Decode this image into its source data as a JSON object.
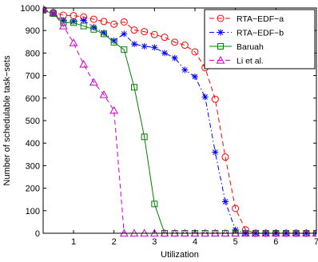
{
  "chart_data": {
    "type": "line",
    "xlabel": "Utilization",
    "ylabel": "Number of schedulable task−sets",
    "xlim": [
      0.25,
      7
    ],
    "ylim": [
      0,
      1000
    ],
    "xticks": [
      1,
      2,
      3,
      4,
      5,
      6,
      7
    ],
    "yticks": [
      0,
      100,
      200,
      300,
      400,
      500,
      600,
      700,
      800,
      900,
      1000
    ],
    "grid": false,
    "legend_position": "top-right",
    "x": [
      0.25,
      0.5,
      0.75,
      1.0,
      1.25,
      1.5,
      1.75,
      2.0,
      2.25,
      2.5,
      2.75,
      3.0,
      3.25,
      3.5,
      3.75,
      4.0,
      4.25,
      4.5,
      4.75,
      5.0,
      5.25,
      5.5,
      5.75,
      6.0,
      6.25,
      6.5,
      6.75,
      7.0
    ],
    "series": [
      {
        "name": "RTA−EDF−a",
        "color": "#ff0000",
        "dash": "6,4",
        "marker": "circle",
        "values": [
          993,
          980,
          968,
          966,
          960,
          950,
          940,
          928,
          938,
          902,
          895,
          882,
          870,
          848,
          835,
          805,
          735,
          595,
          338,
          110,
          15,
          0,
          0,
          0,
          0,
          0,
          0,
          0
        ]
      },
      {
        "name": "RTA−EDF−b",
        "color": "#0000ff",
        "dash": "6,3,1.5,3",
        "marker": "star",
        "values": [
          988,
          975,
          945,
          940,
          945,
          915,
          890,
          855,
          885,
          840,
          830,
          825,
          800,
          778,
          725,
          695,
          605,
          360,
          140,
          15,
          0,
          0,
          0,
          0,
          0,
          0,
          0,
          0
        ]
      },
      {
        "name": "Baruah",
        "color": "#008000",
        "dash": "",
        "marker": "square",
        "values": [
          990,
          975,
          935,
          935,
          920,
          905,
          885,
          848,
          815,
          648,
          428,
          130,
          0,
          0,
          0,
          0,
          0,
          0,
          0,
          0,
          0,
          0,
          0,
          0,
          0,
          0,
          0,
          0
        ]
      },
      {
        "name": "Li et al.",
        "color": "#cc00cc",
        "dash": "6,4",
        "marker": "triangle",
        "values": [
          995,
          980,
          920,
          845,
          750,
          670,
          615,
          545,
          0,
          0,
          0,
          0,
          0,
          0,
          0,
          0,
          0,
          0,
          0,
          0,
          0,
          0,
          0,
          0,
          0,
          0,
          0,
          0
        ]
      }
    ]
  }
}
